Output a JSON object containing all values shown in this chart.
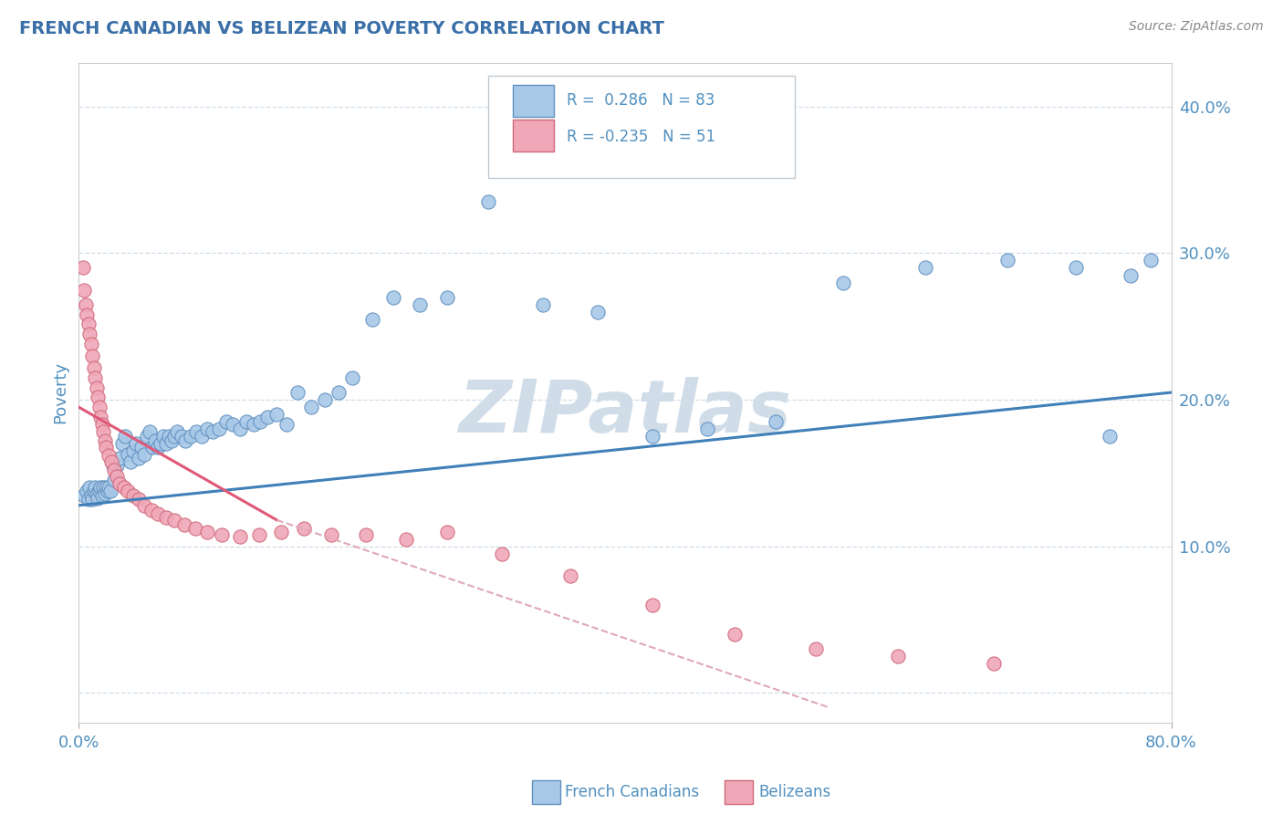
{
  "title": "FRENCH CANADIAN VS BELIZEAN POVERTY CORRELATION CHART",
  "source": "Source: ZipAtlas.com",
  "ylabel": "Poverty",
  "xmin": 0.0,
  "xmax": 0.8,
  "ymin": -0.02,
  "ymax": 0.43,
  "yticks": [
    0.0,
    0.1,
    0.2,
    0.3,
    0.4
  ],
  "ytick_labels": [
    "",
    "10.0%",
    "20.0%",
    "30.0%",
    "40.0%"
  ],
  "legend_blue_r": "R =  0.286",
  "legend_blue_n": "N = 83",
  "legend_pink_r": "R = -0.235",
  "legend_pink_n": "N = 51",
  "blue_color": "#a8c8e8",
  "blue_edge_color": "#6090c0",
  "pink_color": "#f0a8b8",
  "pink_edge_color": "#d06878",
  "trend_blue_color": "#4080b8",
  "trend_pink_solid_color": "#e05878",
  "trend_pink_dash_color": "#e0a8b8",
  "title_color": "#3a6fa8",
  "axis_color": "#5090c0",
  "tick_color": "#5090c0",
  "grid_color": "#d0dde8",
  "watermark_color": "#d0dde8",
  "blue_trend_x0": 0.0,
  "blue_trend_x1": 0.8,
  "blue_trend_y0": 0.128,
  "blue_trend_y1": 0.205,
  "pink_trend_solid_x0": 0.0,
  "pink_trend_solid_x1": 0.145,
  "pink_trend_solid_y0": 0.195,
  "pink_trend_solid_y1": 0.118,
  "pink_trend_dash_x0": 0.145,
  "pink_trend_dash_x1": 0.55,
  "pink_trend_dash_y0": 0.118,
  "pink_trend_dash_y1": -0.01,
  "blue_x": [
    0.004,
    0.006,
    0.007,
    0.008,
    0.009,
    0.01,
    0.011,
    0.012,
    0.013,
    0.014,
    0.015,
    0.016,
    0.017,
    0.018,
    0.019,
    0.02,
    0.021,
    0.022,
    0.023,
    0.025,
    0.026,
    0.028,
    0.03,
    0.032,
    0.034,
    0.036,
    0.038,
    0.04,
    0.042,
    0.044,
    0.046,
    0.048,
    0.05,
    0.052,
    0.054,
    0.056,
    0.058,
    0.06,
    0.062,
    0.064,
    0.066,
    0.068,
    0.07,
    0.072,
    0.075,
    0.078,
    0.082,
    0.086,
    0.09,
    0.094,
    0.098,
    0.103,
    0.108,
    0.113,
    0.118,
    0.123,
    0.128,
    0.133,
    0.138,
    0.145,
    0.152,
    0.16,
    0.17,
    0.18,
    0.19,
    0.2,
    0.215,
    0.23,
    0.25,
    0.27,
    0.3,
    0.34,
    0.38,
    0.42,
    0.46,
    0.51,
    0.56,
    0.62,
    0.68,
    0.73,
    0.755,
    0.77,
    0.785
  ],
  "blue_y": [
    0.135,
    0.138,
    0.132,
    0.14,
    0.135,
    0.132,
    0.138,
    0.14,
    0.136,
    0.133,
    0.138,
    0.14,
    0.135,
    0.14,
    0.136,
    0.14,
    0.138,
    0.14,
    0.138,
    0.155,
    0.145,
    0.155,
    0.16,
    0.17,
    0.175,
    0.163,
    0.158,
    0.165,
    0.17,
    0.16,
    0.168,
    0.163,
    0.175,
    0.178,
    0.168,
    0.172,
    0.168,
    0.17,
    0.175,
    0.17,
    0.175,
    0.172,
    0.175,
    0.178,
    0.175,
    0.172,
    0.175,
    0.178,
    0.175,
    0.18,
    0.178,
    0.18,
    0.185,
    0.183,
    0.18,
    0.185,
    0.183,
    0.185,
    0.188,
    0.19,
    0.183,
    0.205,
    0.195,
    0.2,
    0.205,
    0.215,
    0.255,
    0.27,
    0.265,
    0.27,
    0.335,
    0.265,
    0.26,
    0.175,
    0.18,
    0.185,
    0.28,
    0.29,
    0.295,
    0.29,
    0.175,
    0.285,
    0.295
  ],
  "pink_x": [
    0.003,
    0.004,
    0.005,
    0.006,
    0.007,
    0.008,
    0.009,
    0.01,
    0.011,
    0.012,
    0.013,
    0.014,
    0.015,
    0.016,
    0.017,
    0.018,
    0.019,
    0.02,
    0.022,
    0.024,
    0.026,
    0.028,
    0.03,
    0.033,
    0.036,
    0.04,
    0.044,
    0.048,
    0.053,
    0.058,
    0.064,
    0.07,
    0.077,
    0.085,
    0.094,
    0.105,
    0.118,
    0.132,
    0.148,
    0.165,
    0.185,
    0.21,
    0.24,
    0.27,
    0.31,
    0.36,
    0.42,
    0.48,
    0.54,
    0.6,
    0.67
  ],
  "pink_y": [
    0.29,
    0.275,
    0.265,
    0.258,
    0.252,
    0.245,
    0.238,
    0.23,
    0.222,
    0.215,
    0.208,
    0.202,
    0.195,
    0.188,
    0.183,
    0.178,
    0.172,
    0.168,
    0.162,
    0.158,
    0.152,
    0.148,
    0.143,
    0.14,
    0.138,
    0.135,
    0.132,
    0.128,
    0.125,
    0.122,
    0.12,
    0.118,
    0.115,
    0.112,
    0.11,
    0.108,
    0.107,
    0.108,
    0.11,
    0.112,
    0.108,
    0.108,
    0.105,
    0.11,
    0.095,
    0.08,
    0.06,
    0.04,
    0.03,
    0.025,
    0.02
  ]
}
